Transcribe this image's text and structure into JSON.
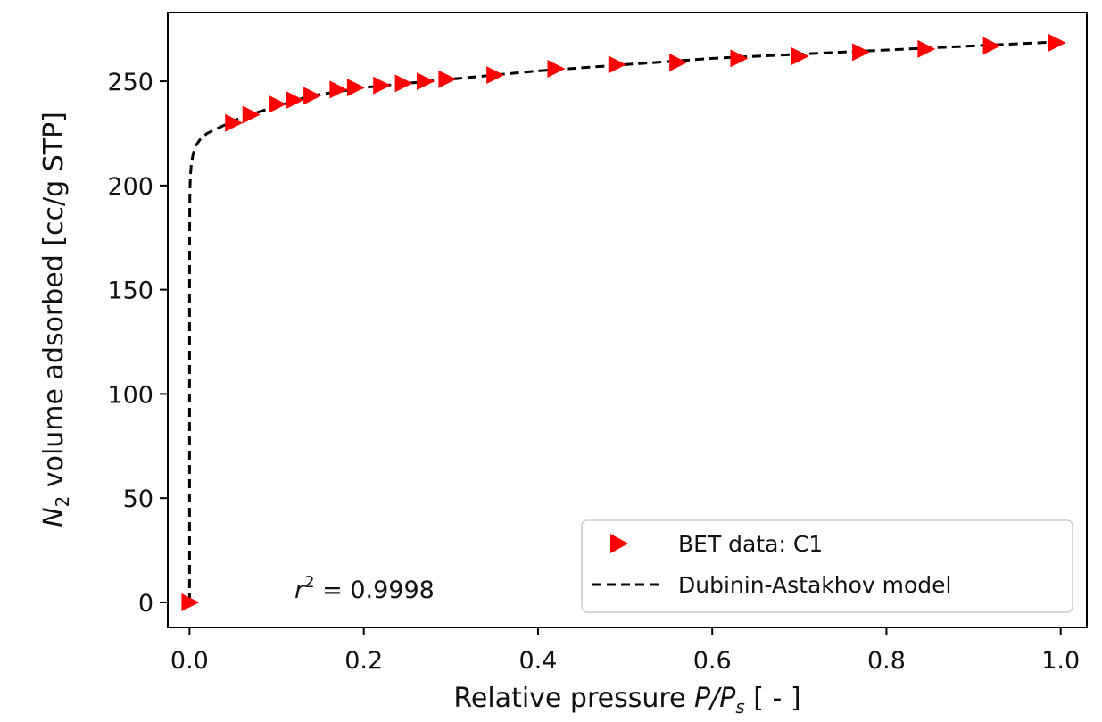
{
  "chart_data": {
    "type": "scatter",
    "title": "",
    "xlabel": {
      "prefix": "Relative pressure ",
      "var1": "P",
      "slash": "/",
      "var2": "P",
      "var2_sub": "s",
      "suffix": " [ - ]"
    },
    "ylabel": {
      "var": "N",
      "var_sub": "2",
      "text": " volume adsorbed [cc/g  STP]"
    },
    "xlim": [
      -0.025,
      1.03
    ],
    "ylim": [
      -12,
      283
    ],
    "xticks": [
      0.0,
      0.2,
      0.4,
      0.6,
      0.8,
      1.0
    ],
    "xtick_labels": [
      "0.0",
      "0.2",
      "0.4",
      "0.6",
      "0.8",
      "1.0"
    ],
    "yticks": [
      0,
      50,
      100,
      150,
      200,
      250
    ],
    "ytick_labels": [
      "0",
      "50",
      "100",
      "150",
      "200",
      "250"
    ],
    "grid": false,
    "legend_position": "bottom-right",
    "series": [
      {
        "name": "BET data: C1",
        "kind": "scatter",
        "marker": "triangle-right",
        "color": "#ff0000",
        "x": [
          0.0,
          0.05,
          0.07,
          0.1,
          0.12,
          0.14,
          0.17,
          0.19,
          0.22,
          0.245,
          0.27,
          0.295,
          0.35,
          0.42,
          0.49,
          0.56,
          0.63,
          0.7,
          0.77,
          0.845,
          0.92,
          0.995
        ],
        "y": [
          0,
          230,
          234,
          239,
          241,
          243,
          246,
          247,
          248,
          249,
          250,
          251,
          253,
          256,
          258,
          259,
          261,
          262,
          264,
          265.5,
          267,
          268.5
        ]
      },
      {
        "name": "Dubinin-Astakhov model",
        "kind": "line",
        "dash": "dashed",
        "color": "#000000",
        "x": [
          0.0,
          0.0,
          0.0002,
          0.0005,
          0.001,
          0.002,
          0.004,
          0.007,
          0.012,
          0.02,
          0.035,
          0.05,
          0.07,
          0.1,
          0.14,
          0.2,
          0.3,
          0.4,
          0.5,
          0.6,
          0.7,
          0.8,
          0.9,
          1.0
        ],
        "y": [
          0,
          150,
          190,
          199,
          205,
          210,
          215,
          219,
          222,
          225,
          228,
          231,
          234,
          238,
          243,
          247,
          251,
          255,
          258,
          261,
          263,
          265,
          267,
          269
        ]
      }
    ],
    "annotations": [
      {
        "var": "r",
        "sup": "2",
        "text": " = 0.9998",
        "x": 0.1,
        "y": 0
      }
    ]
  }
}
